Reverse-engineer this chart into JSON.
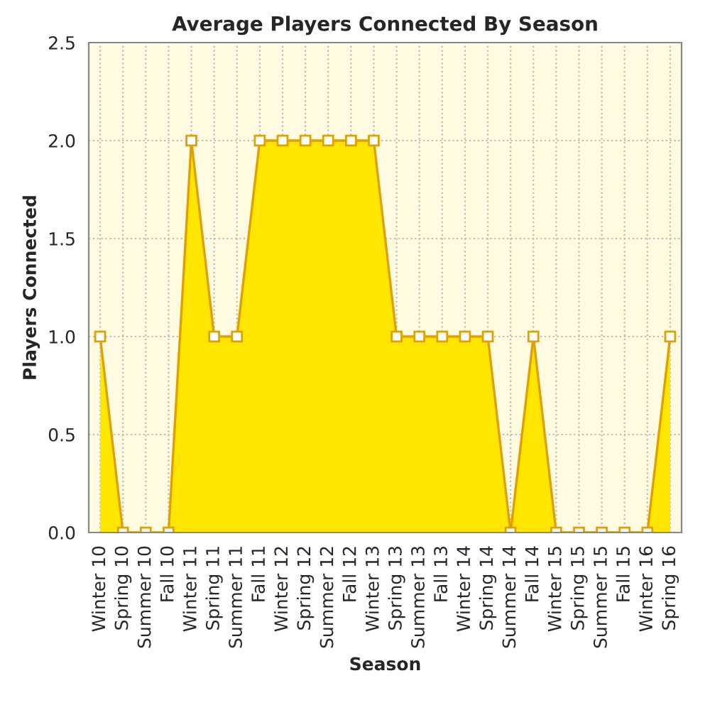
{
  "chart_data": {
    "type": "area",
    "title": "Average Players Connected By Season",
    "xlabel": "Season",
    "ylabel": "Players Connected",
    "categories": [
      "Winter 10",
      "Spring 10",
      "Summer 10",
      "Fall 10",
      "Winter 11",
      "Spring 11",
      "Summer 11",
      "Fall 11",
      "Winter 12",
      "Spring 12",
      "Summer 12",
      "Fall 12",
      "Winter 13",
      "Spring 13",
      "Summer 13",
      "Fall 13",
      "Winter 14",
      "Spring 14",
      "Summer 14",
      "Fall 14",
      "Winter 15",
      "Spring 15",
      "Summer 15",
      "Fall 15",
      "Winter 16",
      "Spring 16"
    ],
    "series": [
      {
        "color": "#ffe600",
        "values": [
          1,
          0,
          0,
          0,
          2,
          1,
          1,
          2,
          2,
          2,
          2,
          2,
          2,
          1,
          1,
          1,
          1,
          1,
          0,
          1,
          0,
          0,
          0,
          0,
          0,
          1
        ]
      }
    ],
    "ylim": [
      0,
      2.5
    ],
    "yticks": [
      {
        "value": 0,
        "label": "0.0"
      },
      {
        "value": 0.5,
        "label": "0.5"
      },
      {
        "value": 1,
        "label": "1.0"
      },
      {
        "value": 1.5,
        "label": "1.5"
      },
      {
        "value": 2,
        "label": "2.0"
      },
      {
        "value": 2.5,
        "label": "2.5"
      }
    ],
    "grid": true,
    "marker": "square",
    "legend": false
  }
}
